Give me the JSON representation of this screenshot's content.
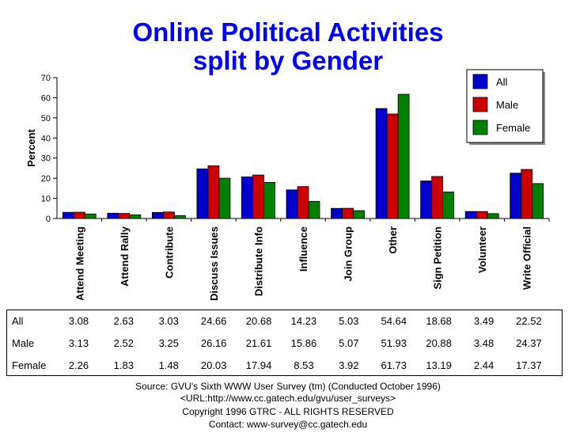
{
  "chart_data": {
    "type": "bar",
    "title": "Online Political Activities",
    "subtitle": "split by Gender",
    "xlabel": "",
    "ylabel": "Percent",
    "ylim": [
      0,
      70
    ],
    "yticks": [
      0,
      10,
      20,
      30,
      40,
      50,
      60,
      70
    ],
    "grid": false,
    "legend_placement": "top-right",
    "categories": [
      "Attend Meeting",
      "Attend Rally",
      "Contribute",
      "Discuss Issues",
      "Distribute Info",
      "Influence",
      "Join Group",
      "Other",
      "Sign Petition",
      "Volunteer",
      "Write Official"
    ],
    "series": [
      {
        "name": "All",
        "color": "#0000cc",
        "values": [
          3.08,
          2.63,
          3.03,
          24.66,
          20.68,
          14.23,
          5.03,
          54.64,
          18.68,
          3.49,
          22.52
        ]
      },
      {
        "name": "Male",
        "color": "#cc0000",
        "values": [
          3.13,
          2.52,
          3.25,
          26.16,
          21.61,
          15.86,
          5.07,
          51.93,
          20.88,
          3.48,
          24.37
        ]
      },
      {
        "name": "Female",
        "color": "#008000",
        "values": [
          2.26,
          1.83,
          1.48,
          20.03,
          17.94,
          8.53,
          3.92,
          61.73,
          13.19,
          2.44,
          17.37
        ]
      }
    ]
  },
  "table": {
    "rows": [
      {
        "label": "All",
        "values": [
          "3.08",
          "2.63",
          "3.03",
          "24.66",
          "20.68",
          "14.23",
          "5.03",
          "54.64",
          "18.68",
          "3.49",
          "22.52"
        ]
      },
      {
        "label": "Male",
        "values": [
          "3.13",
          "2.52",
          "3.25",
          "26.16",
          "21.61",
          "15.86",
          "5.07",
          "51.93",
          "20.88",
          "3.48",
          "24.37"
        ]
      },
      {
        "label": "Female",
        "values": [
          "2.26",
          "1.83",
          "1.48",
          "20.03",
          "17.94",
          "8.53",
          "3.92",
          "61.73",
          "13.19",
          "2.44",
          "17.37"
        ]
      }
    ]
  },
  "source": {
    "line1": "Source: GVU's Sixth WWW User Survey (tm) (Conducted October 1996)",
    "line2": "<URL:http://www.cc.gatech.edu/gvu/user_surveys>",
    "line3": "Copyright 1996 GTRC - ALL RIGHTS RESERVED",
    "line4": "Contact: www-survey@cc.gatech.edu"
  }
}
